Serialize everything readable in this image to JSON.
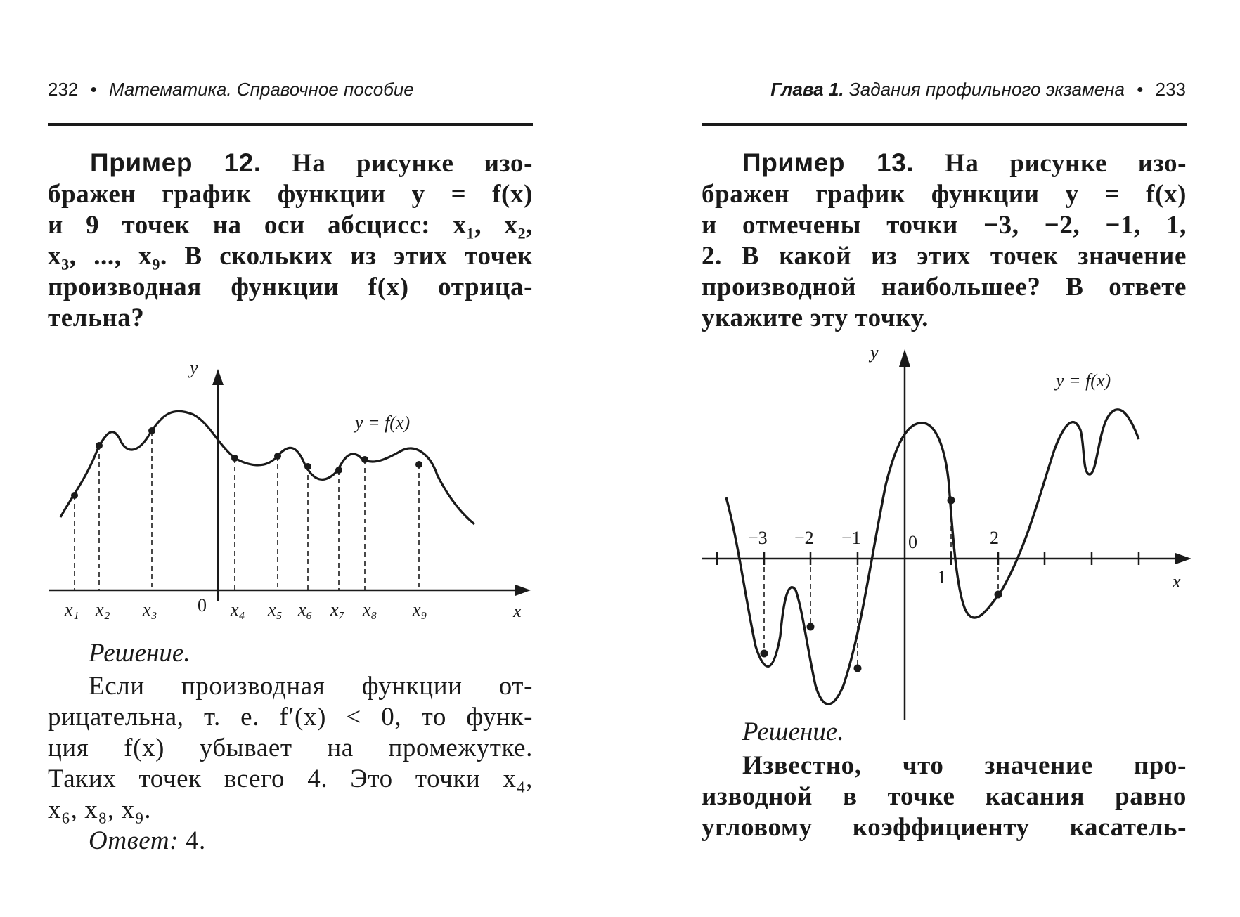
{
  "left_page": {
    "header": {
      "page_number": "232",
      "bullet": "•",
      "title": "Математика. Справочное пособие"
    },
    "example": {
      "label": "Пример 12.",
      "statement_lines": [
        "На рисунке изо-",
        "бражен график функции y = f(x)",
        "и 9 точек на оси абсцисс: x₁, x₂,",
        "x₃, ..., x₉. В скольких из этих точек",
        "производная функции f(x) отрица-",
        "тельна?"
      ],
      "figure": {
        "y_axis_label": "y",
        "x_axis_label": "x",
        "origin_label": "0",
        "curve_label": "y = f(x)",
        "point_labels": [
          "x₁",
          "x₂",
          "x₃",
          "x₄",
          "x₅",
          "x₆",
          "x₇",
          "x₈",
          "x₉"
        ]
      },
      "solution_heading": "Решение.",
      "solution_lines": [
        "Если производная функции от-",
        "рицательна, т. е. f′(x) < 0, то функ-",
        "ция f(x) убывает на промежутке.",
        "Таких точек всего 4. Это точки x₄,",
        "x₆, x₈, x₉."
      ],
      "answer_label": "Ответ:",
      "answer_value": "4."
    }
  },
  "right_page": {
    "header": {
      "chapter": "Глава 1.",
      "title": "Задания профильного экзамена",
      "bullet": "•",
      "page_number": "233"
    },
    "example": {
      "label": "Пример 13.",
      "statement_lines": [
        "На рисунке изо-",
        "бражен график функции y = f(x)",
        "и отмечены точки −3, −2, −1, 1,",
        "2. В какой из этих точек значение",
        "производной наибольшее? В ответе",
        "укажите эту точку."
      ],
      "figure": {
        "y_axis_label": "y",
        "x_axis_label": "x",
        "origin_label": "0",
        "curve_label": "y = f(x)",
        "tick_labels": [
          "−3",
          "−2",
          "−1",
          "1",
          "2"
        ]
      },
      "solution_heading": "Решение.",
      "solution_lines": [
        "Известно, что значение про-",
        "изводной в точке касания равно",
        "угловому коэффициенту касатель-"
      ]
    }
  }
}
